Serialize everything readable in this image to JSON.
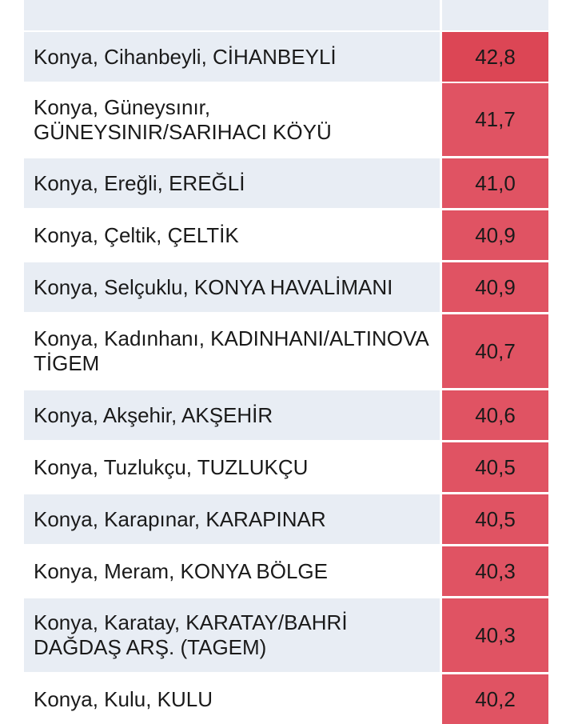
{
  "colors": {
    "stripe": "#e8edf4",
    "value_high": "#dc4655",
    "value": "#e05363"
  },
  "rows": [
    {
      "location": "Konya, Cihanbeyli, CİHANBEYLİ",
      "value": "42,8"
    },
    {
      "location": "Konya, Güneysınır, GÜNEYSINIR/SARIHACI KÖYÜ",
      "value": "41,7"
    },
    {
      "location": "Konya, Ereğli, EREĞLİ",
      "value": "41,0"
    },
    {
      "location": "Konya, Çeltik, ÇELTİK",
      "value": "40,9"
    },
    {
      "location": "Konya, Selçuklu, KONYA HAVALİMANI",
      "value": "40,9"
    },
    {
      "location": "Konya, Kadınhanı, KADINHANI/ALTINOVA TİGEM",
      "value": "40,7"
    },
    {
      "location": "Konya, Akşehir, AKŞEHİR",
      "value": "40,6"
    },
    {
      "location": "Konya, Tuzlukçu, TUZLUKÇU",
      "value": "40,5"
    },
    {
      "location": "Konya, Karapınar, KARAPINAR",
      "value": "40,5"
    },
    {
      "location": "Konya, Meram, KONYA BÖLGE",
      "value": "40,3"
    },
    {
      "location": "Konya, Karatay, KARATAY/BAHRİ DAĞDAŞ ARŞ. (TAGEM)",
      "value": "40,3"
    },
    {
      "location": "Konya, Kulu, KULU",
      "value": "40,2"
    }
  ]
}
